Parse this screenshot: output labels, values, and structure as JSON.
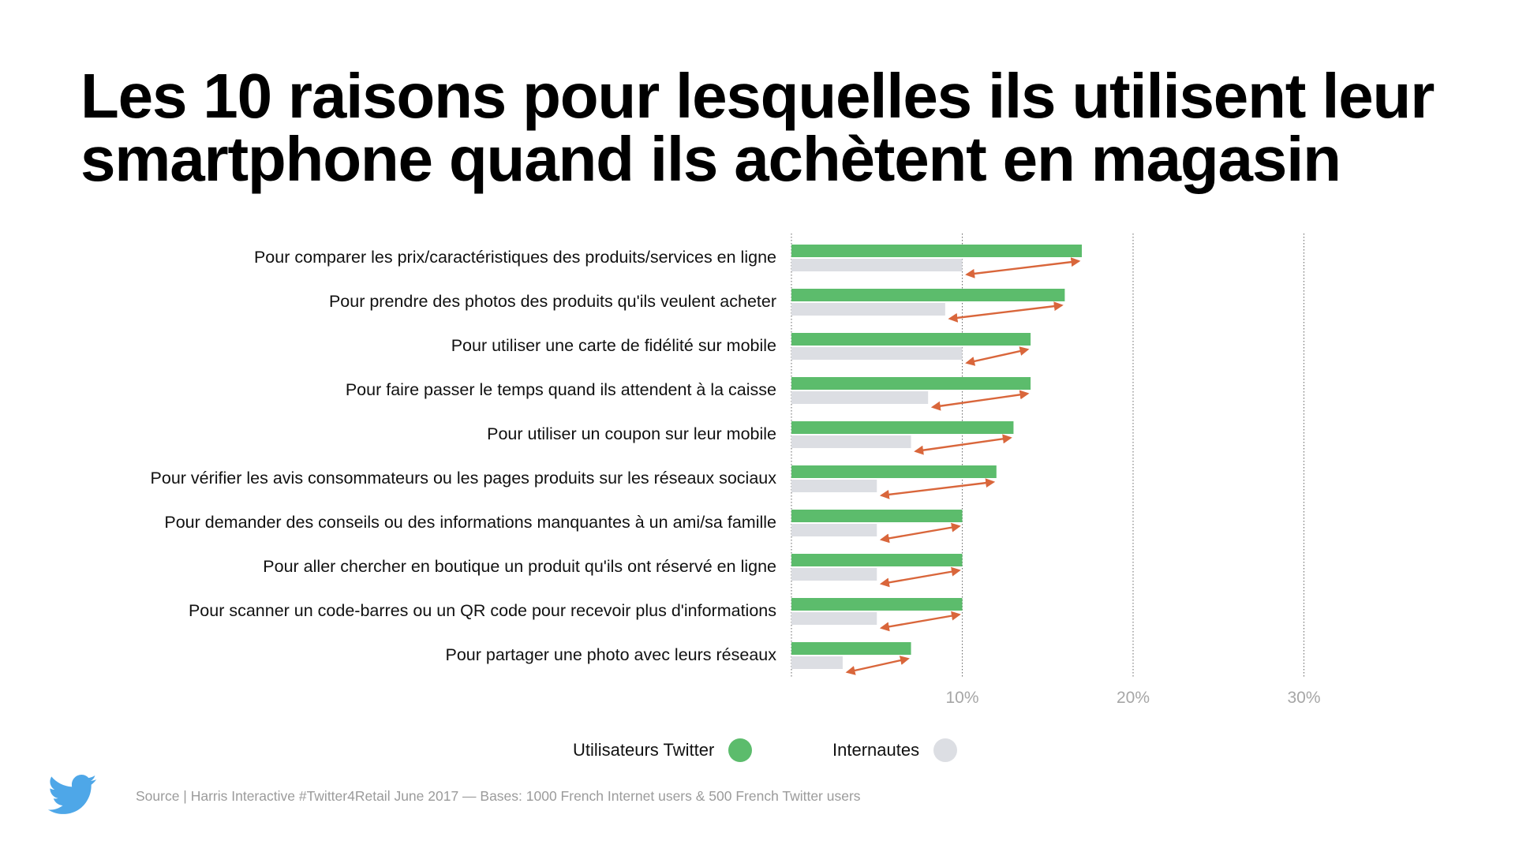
{
  "title_lines": [
    "Les 10 raisons pour lesquelles ils utilisent leur",
    "smartphone quand ils achètent en magasin"
  ],
  "legend": [
    {
      "label": "Utilisateurs Twitter",
      "color": "#5cbc6c"
    },
    {
      "label": "Internautes",
      "color": "#dcdee3"
    }
  ],
  "source": "Source | Harris Interactive #Twitter4Retail June 2017 — Bases: 1000 French Internet users & 500 French Twitter users",
  "icons": {
    "logo": "twitter-bird-icon"
  },
  "colors": {
    "twitter_bar": "#5cbc6c",
    "internautes_bar": "#dcdee3",
    "arrow": "#d9663b",
    "gridline": "#666666",
    "tick_text": "#a6a6a6",
    "logo": "#4ea7e8"
  },
  "chart_data": {
    "type": "bar",
    "orientation": "horizontal",
    "categories": [
      "Pour comparer les prix/caractéristiques des produits/services en ligne",
      "Pour prendre des photos des produits qu'ils veulent acheter",
      "Pour utiliser une carte de fidélité sur mobile",
      "Pour faire passer le temps quand ils attendent à la caisse",
      "Pour utiliser un coupon sur leur mobile",
      "Pour vérifier les avis consommateurs ou les pages produits sur les réseaux sociaux",
      "Pour demander des conseils ou des informations manquantes à un ami/sa famille",
      "Pour aller chercher en boutique un produit qu'ils ont réservé en ligne",
      "Pour scanner un code-barres ou un QR code pour recevoir plus d'informations",
      "Pour partager une photo avec leurs réseaux"
    ],
    "series": [
      {
        "name": "Utilisateurs Twitter",
        "values": [
          17,
          16,
          14,
          14,
          13,
          12,
          10,
          10,
          10,
          7
        ]
      },
      {
        "name": "Internautes",
        "values": [
          10,
          9,
          10,
          8,
          7,
          5,
          5,
          5,
          5,
          3
        ]
      }
    ],
    "xlim": [
      0,
      30
    ],
    "xticks": [
      10,
      20,
      30
    ],
    "xtick_labels": [
      "10%",
      "20%",
      "30%"
    ],
    "grid": "vertical dotted",
    "legend_position": "bottom-center",
    "annotations": "double-headed arrows between Internautes and Utilisateurs Twitter values"
  }
}
